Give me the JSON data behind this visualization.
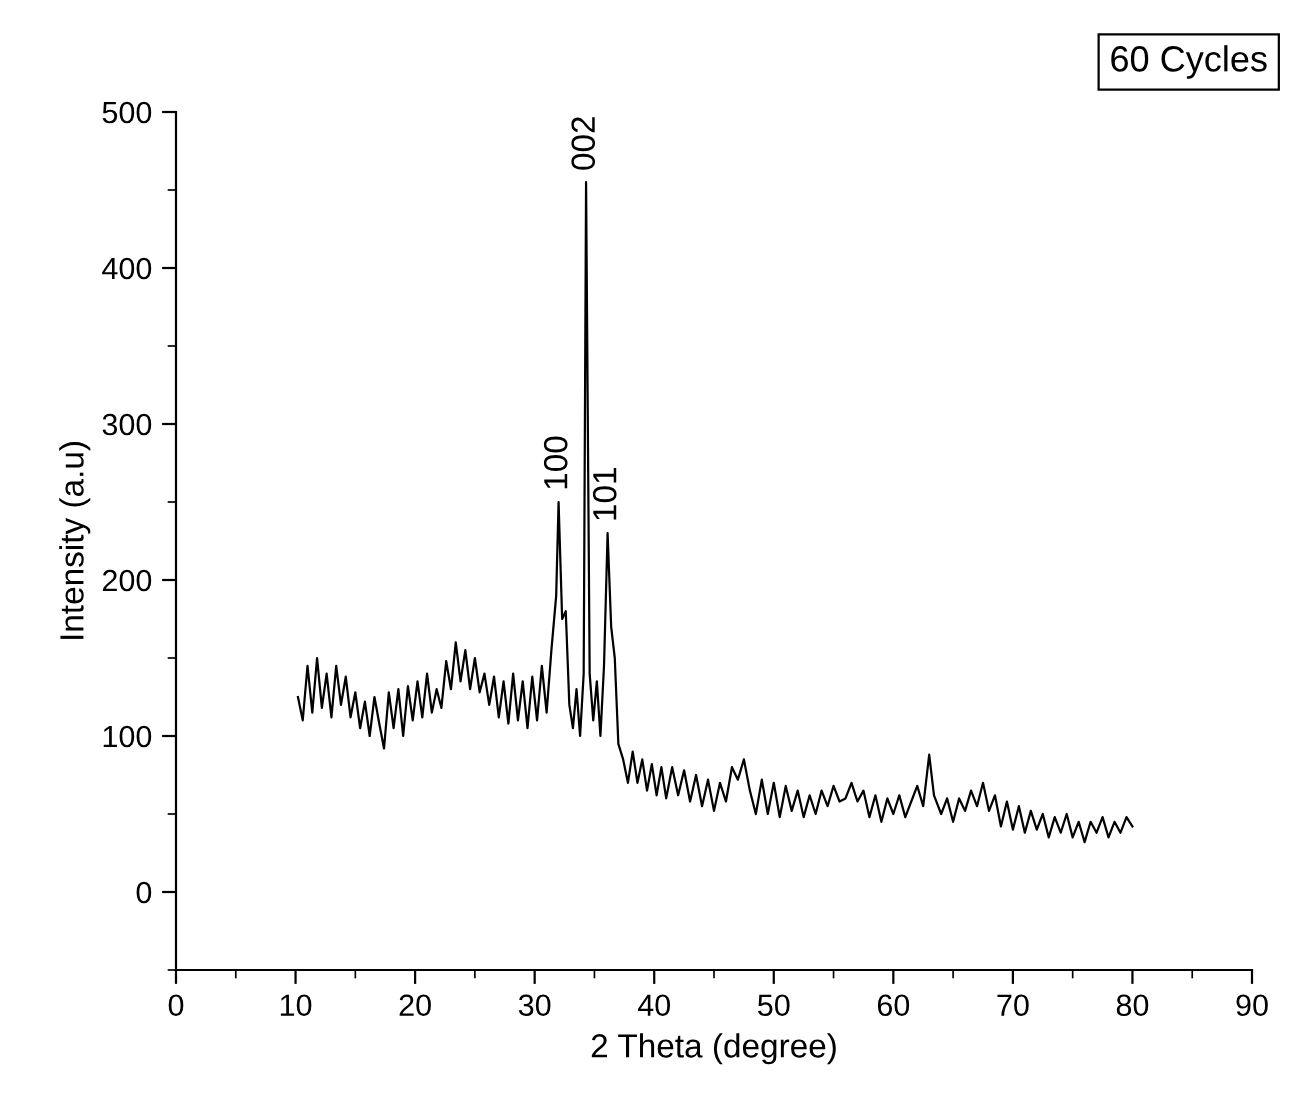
{
  "chart_data": {
    "type": "line",
    "xlabel": "2 Theta (degree)",
    "ylabel": "Intensity (a.u)",
    "xlim": [
      0,
      90
    ],
    "ylim": [
      -50,
      500
    ],
    "xticks": [
      0,
      10,
      20,
      30,
      40,
      50,
      60,
      70,
      80,
      90
    ],
    "yticks": [
      0,
      100,
      200,
      300,
      400,
      500
    ],
    "grid": false,
    "marker": "none",
    "line_style": "solid",
    "annotations": [
      {
        "text": "100",
        "x": 32.0,
        "y": 250
      },
      {
        "text": "002",
        "x": 34.3,
        "y": 455
      },
      {
        "text": "101",
        "x": 36.1,
        "y": 230
      },
      "60 Cycles"
    ],
    "series": [
      {
        "color": "#000000",
        "x": [
          10.2,
          10.6,
          11.0,
          11.4,
          11.8,
          12.2,
          12.6,
          13.0,
          13.4,
          13.8,
          14.2,
          14.6,
          15.0,
          15.4,
          15.8,
          16.2,
          16.6,
          17.0,
          17.4,
          17.8,
          18.2,
          18.6,
          19.0,
          19.4,
          19.8,
          20.2,
          20.6,
          21.0,
          21.4,
          21.8,
          22.2,
          22.6,
          23.0,
          23.4,
          23.8,
          24.2,
          24.6,
          25.0,
          25.4,
          25.8,
          26.2,
          26.6,
          27.0,
          27.4,
          27.8,
          28.2,
          28.6,
          29.0,
          29.4,
          29.8,
          30.2,
          30.6,
          31.0,
          31.4,
          31.8,
          32.0,
          32.3,
          32.6,
          32.9,
          33.2,
          33.5,
          33.8,
          34.1,
          34.3,
          34.6,
          34.9,
          35.2,
          35.5,
          35.8,
          36.1,
          36.4,
          36.7,
          37.0,
          37.4,
          37.8,
          38.2,
          38.6,
          39.0,
          39.4,
          39.8,
          40.2,
          40.6,
          41.0,
          41.5,
          42.0,
          42.5,
          43.0,
          43.5,
          44.0,
          44.5,
          45.0,
          45.5,
          46.0,
          46.5,
          47.0,
          47.5,
          48.0,
          48.5,
          49.0,
          49.5,
          50.0,
          50.5,
          51.0,
          51.5,
          52.0,
          52.5,
          53.0,
          53.5,
          54.0,
          54.5,
          55.0,
          55.5,
          56.0,
          56.5,
          57.0,
          57.5,
          58.0,
          58.5,
          59.0,
          59.5,
          60.0,
          60.5,
          61.0,
          61.5,
          62.0,
          62.5,
          63.0,
          63.4,
          64.0,
          64.5,
          65.0,
          65.5,
          66.0,
          66.5,
          67.0,
          67.5,
          68.0,
          68.5,
          69.0,
          69.5,
          70.0,
          70.5,
          71.0,
          71.5,
          72.0,
          72.5,
          73.0,
          73.5,
          74.0,
          74.5,
          75.0,
          75.5,
          76.0,
          76.5,
          77.0,
          77.5,
          78.0,
          78.5,
          79.0,
          79.5,
          80.0
        ],
        "values": [
          125,
          110,
          145,
          115,
          150,
          118,
          140,
          112,
          145,
          120,
          138,
          112,
          128,
          105,
          122,
          100,
          125,
          108,
          92,
          128,
          105,
          130,
          100,
          132,
          110,
          135,
          112,
          140,
          115,
          130,
          118,
          148,
          130,
          160,
          135,
          155,
          130,
          150,
          128,
          140,
          120,
          138,
          112,
          135,
          108,
          140,
          110,
          135,
          105,
          138,
          110,
          145,
          115,
          155,
          190,
          250,
          175,
          180,
          120,
          105,
          130,
          100,
          140,
          455,
          140,
          110,
          135,
          100,
          145,
          230,
          170,
          150,
          95,
          85,
          70,
          90,
          70,
          85,
          65,
          82,
          62,
          80,
          60,
          80,
          62,
          78,
          58,
          75,
          55,
          72,
          52,
          70,
          58,
          80,
          72,
          85,
          65,
          50,
          72,
          50,
          70,
          48,
          68,
          52,
          65,
          48,
          62,
          50,
          65,
          55,
          68,
          58,
          60,
          70,
          58,
          65,
          48,
          62,
          45,
          60,
          50,
          62,
          48,
          58,
          68,
          55,
          88,
          62,
          50,
          60,
          45,
          60,
          52,
          65,
          55,
          70,
          52,
          62,
          42,
          58,
          40,
          55,
          38,
          52,
          40,
          50,
          35,
          48,
          38,
          50,
          35,
          45,
          32,
          45,
          38,
          48,
          35,
          45,
          38,
          48,
          42
        ]
      }
    ]
  }
}
